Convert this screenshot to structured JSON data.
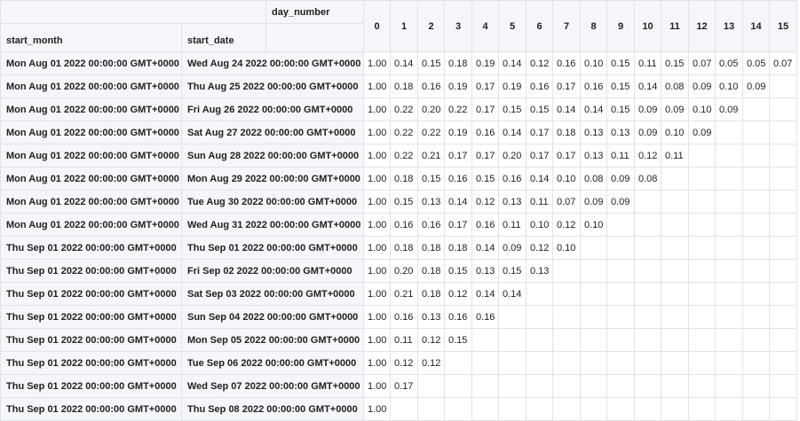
{
  "table": {
    "day_number_label": "day_number",
    "start_month_label": "start_month",
    "start_date_label": "start_date",
    "day_columns": [
      "0",
      "1",
      "2",
      "3",
      "4",
      "5",
      "6",
      "7",
      "8",
      "9",
      "10",
      "11",
      "12",
      "13",
      "14",
      "15"
    ],
    "rows": [
      {
        "start_month": "Mon Aug 01 2022 00:00:00 GMT+0000",
        "start_date": "Wed Aug 24 2022 00:00:00 GMT+0000",
        "values": [
          "1.00",
          "0.14",
          "0.15",
          "0.18",
          "0.19",
          "0.14",
          "0.12",
          "0.16",
          "0.10",
          "0.15",
          "0.11",
          "0.15",
          "0.07",
          "0.05",
          "0.05",
          "0.07"
        ]
      },
      {
        "start_month": "Mon Aug 01 2022 00:00:00 GMT+0000",
        "start_date": "Thu Aug 25 2022 00:00:00 GMT+0000",
        "values": [
          "1.00",
          "0.18",
          "0.16",
          "0.19",
          "0.17",
          "0.19",
          "0.16",
          "0.17",
          "0.16",
          "0.15",
          "0.14",
          "0.08",
          "0.09",
          "0.10",
          "0.09"
        ]
      },
      {
        "start_month": "Mon Aug 01 2022 00:00:00 GMT+0000",
        "start_date": "Fri Aug 26 2022 00:00:00 GMT+0000",
        "values": [
          "1.00",
          "0.22",
          "0.20",
          "0.22",
          "0.17",
          "0.15",
          "0.15",
          "0.14",
          "0.14",
          "0.15",
          "0.09",
          "0.09",
          "0.10",
          "0.09"
        ]
      },
      {
        "start_month": "Mon Aug 01 2022 00:00:00 GMT+0000",
        "start_date": "Sat Aug 27 2022 00:00:00 GMT+0000",
        "values": [
          "1.00",
          "0.22",
          "0.22",
          "0.19",
          "0.16",
          "0.14",
          "0.17",
          "0.18",
          "0.13",
          "0.13",
          "0.09",
          "0.10",
          "0.09"
        ]
      },
      {
        "start_month": "Mon Aug 01 2022 00:00:00 GMT+0000",
        "start_date": "Sun Aug 28 2022 00:00:00 GMT+0000",
        "values": [
          "1.00",
          "0.22",
          "0.21",
          "0.17",
          "0.17",
          "0.20",
          "0.17",
          "0.17",
          "0.13",
          "0.11",
          "0.12",
          "0.11"
        ]
      },
      {
        "start_month": "Mon Aug 01 2022 00:00:00 GMT+0000",
        "start_date": "Mon Aug 29 2022 00:00:00 GMT+0000",
        "values": [
          "1.00",
          "0.18",
          "0.15",
          "0.16",
          "0.15",
          "0.16",
          "0.14",
          "0.10",
          "0.08",
          "0.09",
          "0.08"
        ]
      },
      {
        "start_month": "Mon Aug 01 2022 00:00:00 GMT+0000",
        "start_date": "Tue Aug 30 2022 00:00:00 GMT+0000",
        "values": [
          "1.00",
          "0.15",
          "0.13",
          "0.14",
          "0.12",
          "0.13",
          "0.11",
          "0.07",
          "0.09",
          "0.09"
        ]
      },
      {
        "start_month": "Mon Aug 01 2022 00:00:00 GMT+0000",
        "start_date": "Wed Aug 31 2022 00:00:00 GMT+0000",
        "values": [
          "1.00",
          "0.16",
          "0.16",
          "0.17",
          "0.16",
          "0.11",
          "0.10",
          "0.12",
          "0.10"
        ]
      },
      {
        "start_month": "Thu Sep 01 2022 00:00:00 GMT+0000",
        "start_date": "Thu Sep 01 2022 00:00:00 GMT+0000",
        "values": [
          "1.00",
          "0.18",
          "0.18",
          "0.18",
          "0.14",
          "0.09",
          "0.12",
          "0.10"
        ]
      },
      {
        "start_month": "Thu Sep 01 2022 00:00:00 GMT+0000",
        "start_date": "Fri Sep 02 2022 00:00:00 GMT+0000",
        "values": [
          "1.00",
          "0.20",
          "0.18",
          "0.15",
          "0.13",
          "0.15",
          "0.13"
        ]
      },
      {
        "start_month": "Thu Sep 01 2022 00:00:00 GMT+0000",
        "start_date": "Sat Sep 03 2022 00:00:00 GMT+0000",
        "values": [
          "1.00",
          "0.21",
          "0.18",
          "0.12",
          "0.14",
          "0.14"
        ]
      },
      {
        "start_month": "Thu Sep 01 2022 00:00:00 GMT+0000",
        "start_date": "Sun Sep 04 2022 00:00:00 GMT+0000",
        "values": [
          "1.00",
          "0.16",
          "0.13",
          "0.16",
          "0.16"
        ]
      },
      {
        "start_month": "Thu Sep 01 2022 00:00:00 GMT+0000",
        "start_date": "Mon Sep 05 2022 00:00:00 GMT+0000",
        "values": [
          "1.00",
          "0.11",
          "0.12",
          "0.15"
        ]
      },
      {
        "start_month": "Thu Sep 01 2022 00:00:00 GMT+0000",
        "start_date": "Tue Sep 06 2022 00:00:00 GMT+0000",
        "values": [
          "1.00",
          "0.12",
          "0.12"
        ]
      },
      {
        "start_month": "Thu Sep 01 2022 00:00:00 GMT+0000",
        "start_date": "Wed Sep 07 2022 00:00:00 GMT+0000",
        "values": [
          "1.00",
          "0.17"
        ]
      },
      {
        "start_month": "Thu Sep 01 2022 00:00:00 GMT+0000",
        "start_date": "Thu Sep 08 2022 00:00:00 GMT+0000",
        "values": [
          "1.00"
        ]
      }
    ]
  }
}
